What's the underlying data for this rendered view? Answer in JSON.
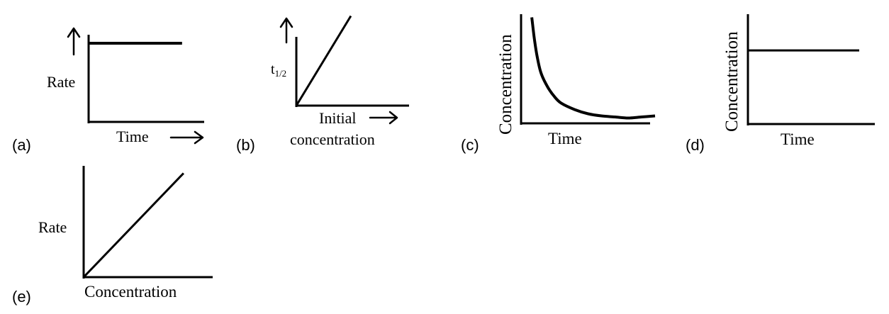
{
  "chart_data": [
    {
      "type": "line",
      "panel_label": "(a)",
      "xlabel": "Time",
      "ylabel": "Rate",
      "x": [
        0,
        1
      ],
      "series": [
        {
          "values": [
            0.73,
            0.73
          ]
        }
      ],
      "xlim": [
        0,
        1.1
      ],
      "ylim": [
        0,
        1
      ]
    },
    {
      "type": "line",
      "panel_label": "(b)",
      "xlabel_line1": "Initial",
      "xlabel_line2": "concentration",
      "ylabel": "t",
      "ylabel_sub": "1/2",
      "x": [
        0,
        1
      ],
      "series": [
        {
          "values": [
            0,
            1
          ]
        }
      ],
      "xlim": [
        0,
        1.3
      ],
      "ylim": [
        0,
        1.02
      ]
    },
    {
      "type": "line",
      "panel_label": "(c)",
      "xlabel": "Time",
      "ylabel": "Concentration",
      "x": [
        0.08,
        0.1,
        0.12,
        0.15,
        0.2,
        0.25,
        0.3,
        0.4,
        0.5,
        0.6,
        0.7,
        0.8,
        0.9,
        1.0
      ],
      "series": [
        {
          "values": [
            1.0,
            0.79,
            0.63,
            0.47,
            0.34,
            0.25,
            0.19,
            0.13,
            0.09,
            0.07,
            0.06,
            0.05,
            0.06,
            0.07
          ]
        }
      ],
      "xlim": [
        0,
        1
      ],
      "ylim": [
        0,
        1.03
      ]
    },
    {
      "type": "line",
      "panel_label": "(d)",
      "xlabel": "Time",
      "ylabel": "Concentration",
      "x": [
        0,
        1
      ],
      "series": [
        {
          "values": [
            0.67,
            0.67
          ]
        }
      ],
      "xlim": [
        0,
        1
      ],
      "ylim": [
        0,
        1
      ]
    },
    {
      "type": "line",
      "panel_label": "(e)",
      "xlabel": "Concentration",
      "ylabel": "Rate",
      "x": [
        0,
        1
      ],
      "series": [
        {
          "values": [
            0,
            1
          ]
        }
      ],
      "xlim": [
        0,
        1.1
      ],
      "ylim": [
        0,
        1.03
      ]
    }
  ]
}
